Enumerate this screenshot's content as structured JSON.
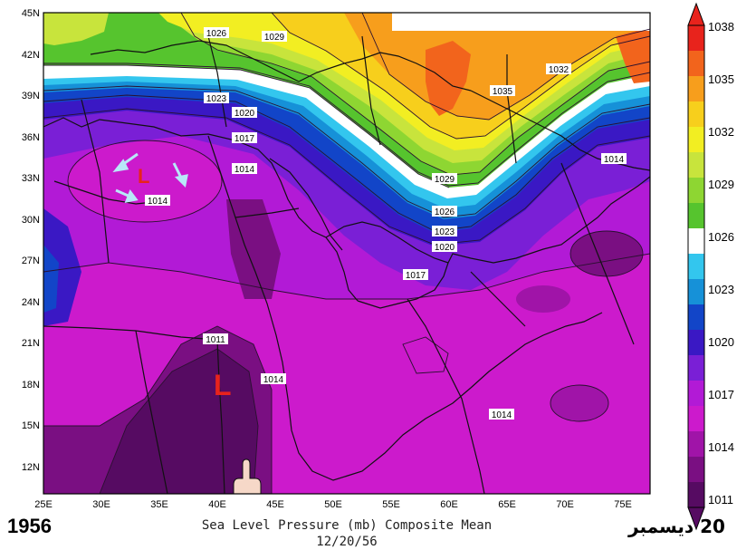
{
  "map": {
    "lat_labels": [
      "45N",
      "42N",
      "39N",
      "36N",
      "33N",
      "30N",
      "27N",
      "24N",
      "21N",
      "18N",
      "15N",
      "12N"
    ],
    "lon_labels": [
      "25E",
      "30E",
      "35E",
      "40E",
      "45E",
      "50E",
      "55E",
      "60E",
      "65E",
      "70E",
      "75E"
    ],
    "isobars": [
      {
        "text": "1026",
        "key": "i1026a"
      },
      {
        "text": "1029",
        "key": "i1029a"
      },
      {
        "text": "1032",
        "key": "i1032"
      },
      {
        "text": "1035",
        "key": "i1035"
      },
      {
        "text": "1023",
        "key": "i1023a"
      },
      {
        "text": "1020",
        "key": "i1020a"
      },
      {
        "text": "1017",
        "key": "i1017a"
      },
      {
        "text": "1014",
        "key": "i1014a"
      },
      {
        "text": "1014",
        "key": "i1014b"
      },
      {
        "text": "1029",
        "key": "i1029b"
      },
      {
        "text": "1026",
        "key": "i1026b"
      },
      {
        "text": "1023",
        "key": "i1023b"
      },
      {
        "text": "1020",
        "key": "i1020b"
      },
      {
        "text": "1017",
        "key": "i1017b"
      },
      {
        "text": "1014",
        "key": "i1014c"
      },
      {
        "text": "1011",
        "key": "i1011"
      },
      {
        "text": "1014",
        "key": "i1014d"
      },
      {
        "text": "1014",
        "key": "i1014e"
      }
    ],
    "low_marker": "L",
    "low_marker_2": "L"
  },
  "colorbar": {
    "labels": [
      "1038",
      "1035",
      "1032",
      "1029",
      "1026",
      "1023",
      "1020",
      "1017",
      "1014",
      "1011"
    ],
    "colors": [
      "#e8231c",
      "#f2641c",
      "#f79e1c",
      "#f7cf1c",
      "#f2ee22",
      "#c8e43c",
      "#8ed632",
      "#56c42e",
      "#ffffff",
      "#33c6ee",
      "#1691d8",
      "#1245c8",
      "#3a18c4",
      "#7a1fd6",
      "#b21ad6",
      "#cc1acc",
      "#a014a8",
      "#7a0f82",
      "#560b62"
    ]
  },
  "footer": {
    "year": "1956",
    "title": "Sea Level Pressure (mb) Composite Mean",
    "date": "12/20/56",
    "arabic_date": "20 ديسمبر"
  }
}
